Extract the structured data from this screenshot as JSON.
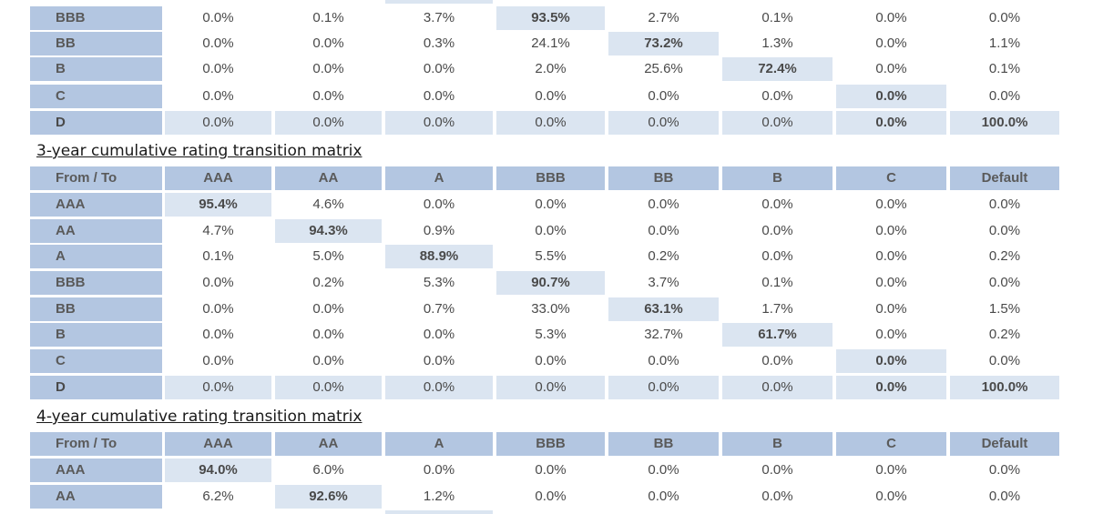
{
  "matrix_2yr_partial": {
    "rows": [
      {
        "label": "BBB",
        "values": [
          "0.0%",
          "0.1%",
          "3.7%",
          "93.5%",
          "2.7%",
          "0.1%",
          "0.0%",
          "0.0%"
        ],
        "diag": 3
      },
      {
        "label": "BB",
        "values": [
          "0.0%",
          "0.0%",
          "0.3%",
          "24.1%",
          "73.2%",
          "1.3%",
          "0.0%",
          "1.1%"
        ],
        "diag": 4
      },
      {
        "label": "B",
        "values": [
          "0.0%",
          "0.0%",
          "0.0%",
          "2.0%",
          "25.6%",
          "72.4%",
          "0.0%",
          "0.1%"
        ],
        "diag": 5
      },
      {
        "label": "C",
        "values": [
          "0.0%",
          "0.0%",
          "0.0%",
          "0.0%",
          "0.0%",
          "0.0%",
          "0.0%",
          "0.0%"
        ],
        "diag": 6
      },
      {
        "label": "D",
        "values": [
          "0.0%",
          "0.0%",
          "0.0%",
          "0.0%",
          "0.0%",
          "0.0%",
          "0.0%",
          "100.0%"
        ],
        "diag": 7,
        "is_default_row": true
      }
    ]
  },
  "matrix_3yr": {
    "title": "3-year cumulative rating transition matrix",
    "header": [
      "From / To",
      "AAA",
      "AA",
      "A",
      "BBB",
      "BB",
      "B",
      "C",
      "Default"
    ],
    "rows": [
      {
        "label": "AAA",
        "values": [
          "95.4%",
          "4.6%",
          "0.0%",
          "0.0%",
          "0.0%",
          "0.0%",
          "0.0%",
          "0.0%"
        ],
        "diag": 0
      },
      {
        "label": "AA",
        "values": [
          "4.7%",
          "94.3%",
          "0.9%",
          "0.0%",
          "0.0%",
          "0.0%",
          "0.0%",
          "0.0%"
        ],
        "diag": 1
      },
      {
        "label": "A",
        "values": [
          "0.1%",
          "5.0%",
          "88.9%",
          "5.5%",
          "0.2%",
          "0.0%",
          "0.0%",
          "0.2%"
        ],
        "diag": 2
      },
      {
        "label": "BBB",
        "values": [
          "0.0%",
          "0.2%",
          "5.3%",
          "90.7%",
          "3.7%",
          "0.1%",
          "0.0%",
          "0.0%"
        ],
        "diag": 3
      },
      {
        "label": "BB",
        "values": [
          "0.0%",
          "0.0%",
          "0.7%",
          "33.0%",
          "63.1%",
          "1.7%",
          "0.0%",
          "1.5%"
        ],
        "diag": 4
      },
      {
        "label": "B",
        "values": [
          "0.0%",
          "0.0%",
          "0.0%",
          "5.3%",
          "32.7%",
          "61.7%",
          "0.0%",
          "0.2%"
        ],
        "diag": 5
      },
      {
        "label": "C",
        "values": [
          "0.0%",
          "0.0%",
          "0.0%",
          "0.0%",
          "0.0%",
          "0.0%",
          "0.0%",
          "0.0%"
        ],
        "diag": 6
      },
      {
        "label": "D",
        "values": [
          "0.0%",
          "0.0%",
          "0.0%",
          "0.0%",
          "0.0%",
          "0.0%",
          "0.0%",
          "100.0%"
        ],
        "diag": 7,
        "is_default_row": true
      }
    ]
  },
  "matrix_4yr": {
    "title": "4-year cumulative rating transition matrix",
    "header": [
      "From / To",
      "AAA",
      "AA",
      "A",
      "BBB",
      "BB",
      "B",
      "C",
      "Default"
    ],
    "rows": [
      {
        "label": "AAA",
        "values": [
          "94.0%",
          "6.0%",
          "0.0%",
          "0.0%",
          "0.0%",
          "0.0%",
          "0.0%",
          "0.0%"
        ],
        "diag": 0
      },
      {
        "label": "AA",
        "values": [
          "6.2%",
          "92.6%",
          "1.2%",
          "0.0%",
          "0.0%",
          "0.0%",
          "0.0%",
          "0.0%"
        ],
        "diag": 1
      }
    ]
  },
  "colors": {
    "header_bg": "#b3c6e1",
    "diag_bg": "#dbe5f1",
    "text": "#4a4a4a"
  }
}
